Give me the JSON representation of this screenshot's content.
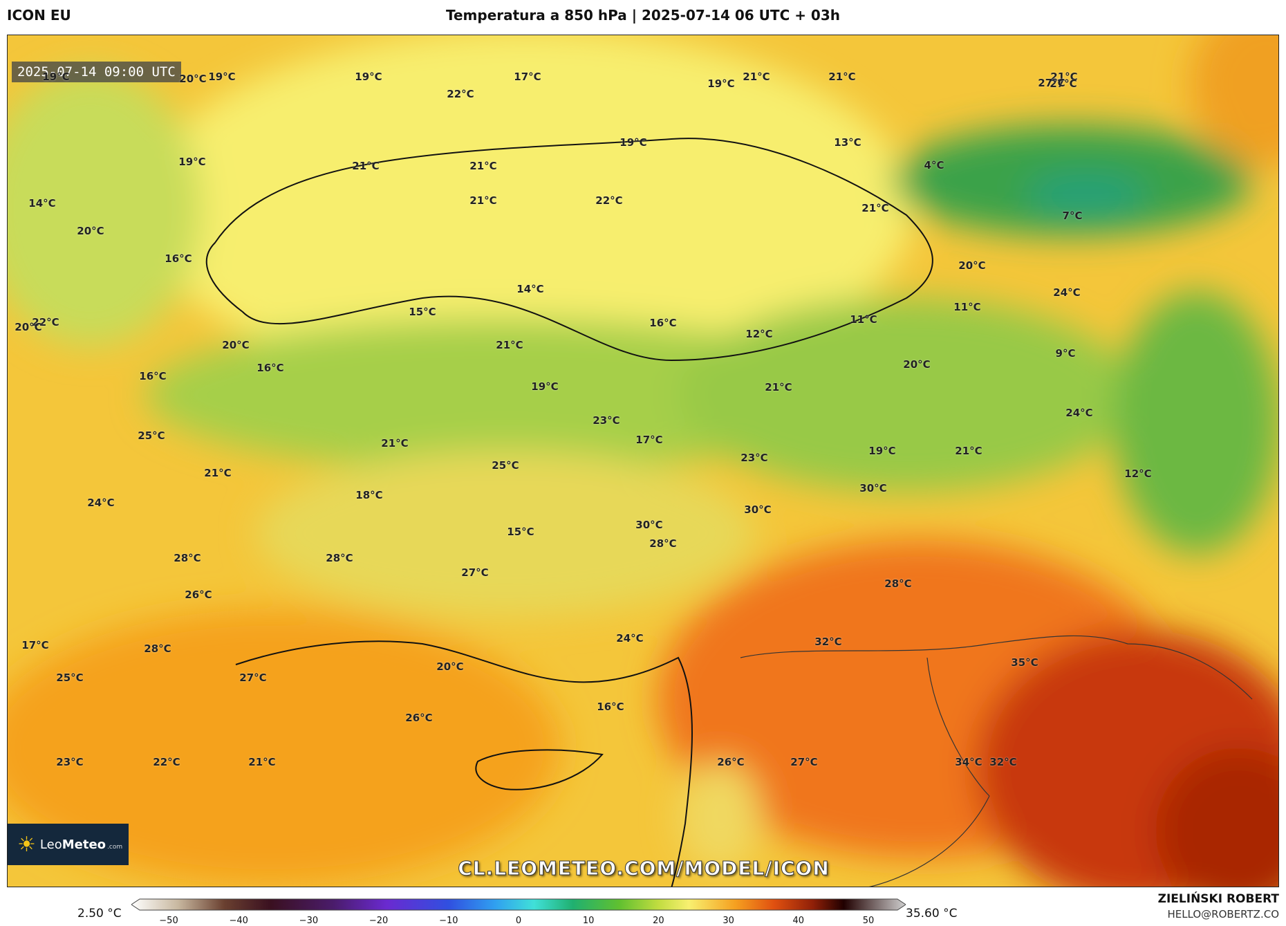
{
  "header": {
    "model": "ICON EU",
    "title": "Temperatura a 850 hPa | 2025-07-14 06 UTC + 03h"
  },
  "map": {
    "valid_time": "2025-07-14 09:00 UTC",
    "watermark_url": "CL.LEOMETEO.COM/MODEL/ICON",
    "logo": {
      "main": "Leo",
      "bold": "Meteo",
      "suffix": ".com"
    },
    "labels": [
      "19°C",
      "20°C",
      "19°C",
      "19°C",
      "22°C",
      "17°C",
      "21°C",
      "19°C",
      "21°C",
      "21°C",
      "27°C",
      "27°C",
      "19°C",
      "21°C",
      "21°C",
      "21°C",
      "22°C",
      "19°C",
      "13°C",
      "4°C",
      "14°C",
      "20°C",
      "16°C",
      "21°C",
      "7°C",
      "20°C",
      "14°C",
      "15°C",
      "24°C",
      "11°C",
      "11°C",
      "16°C",
      "12°C",
      "22°C",
      "20°C",
      "20°C",
      "21°C",
      "16°C",
      "16°C",
      "9°C",
      "20°C",
      "19°C",
      "21°C",
      "23°C",
      "24°C",
      "25°C",
      "17°C",
      "21°C",
      "21°C",
      "25°C",
      "23°C",
      "19°C",
      "21°C",
      "12°C",
      "18°C",
      "30°C",
      "24°C",
      "30°C",
      "15°C",
      "30°C",
      "28°C",
      "28°C",
      "28°C",
      "27°C",
      "28°C",
      "26°C",
      "24°C",
      "32°C",
      "17°C",
      "28°C",
      "20°C",
      "35°C",
      "25°C",
      "27°C",
      "16°C",
      "26°C",
      "23°C",
      "22°C",
      "21°C",
      "26°C",
      "27°C",
      "34°C",
      "32°C"
    ]
  },
  "colorbar": {
    "min_label": "2.50 °C",
    "max_label": "35.60 °C",
    "ticks": [
      "−50",
      "−40",
      "−30",
      "−20",
      "−10",
      "0",
      "10",
      "20",
      "30",
      "40",
      "50"
    ]
  },
  "footer": {
    "author": "ZIELIŃSKI ROBERT",
    "email": "HELLO@ROBERTZ.CO"
  },
  "colors": {
    "yellow": "#f7ee6e",
    "green": "#88c24a",
    "dark_green": "#2f9c3e",
    "orange": "#f5a21c",
    "red": "#e05010",
    "dark_red": "#b52a08"
  }
}
